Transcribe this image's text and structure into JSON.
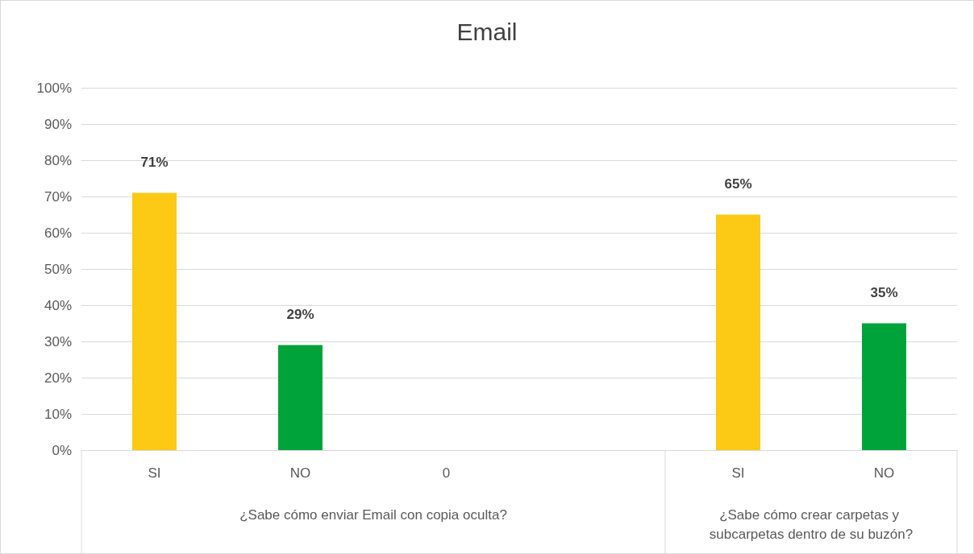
{
  "chart_data": {
    "type": "bar",
    "title": "Email",
    "categories": [
      "SI",
      "NO",
      "0",
      null,
      "SI",
      "NO"
    ],
    "values": [
      71,
      29,
      null,
      null,
      65,
      35
    ],
    "colors": [
      "#fcc914",
      "#00a33a",
      null,
      null,
      "#fcc914",
      "#00a33a"
    ],
    "value_labels": [
      "71%",
      "29%",
      null,
      null,
      "65%",
      "35%"
    ],
    "ylim": [
      0,
      100
    ],
    "yticks": [
      {
        "value": 0,
        "label": "0%"
      },
      {
        "value": 10,
        "label": "10%"
      },
      {
        "value": 20,
        "label": "20%"
      },
      {
        "value": 30,
        "label": "30%"
      },
      {
        "value": 40,
        "label": "40%"
      },
      {
        "value": 50,
        "label": "50%"
      },
      {
        "value": 60,
        "label": "60%"
      },
      {
        "value": 70,
        "label": "70%"
      },
      {
        "value": 80,
        "label": "80%"
      },
      {
        "value": 90,
        "label": "90%"
      },
      {
        "value": 100,
        "label": "100%"
      }
    ],
    "annotations": [
      "¿Sabe cómo enviar Email con copia oculta?",
      "¿Sabe cómo crear carpetas y subcarpetas dentro de su buzón?"
    ],
    "grid": "y"
  }
}
